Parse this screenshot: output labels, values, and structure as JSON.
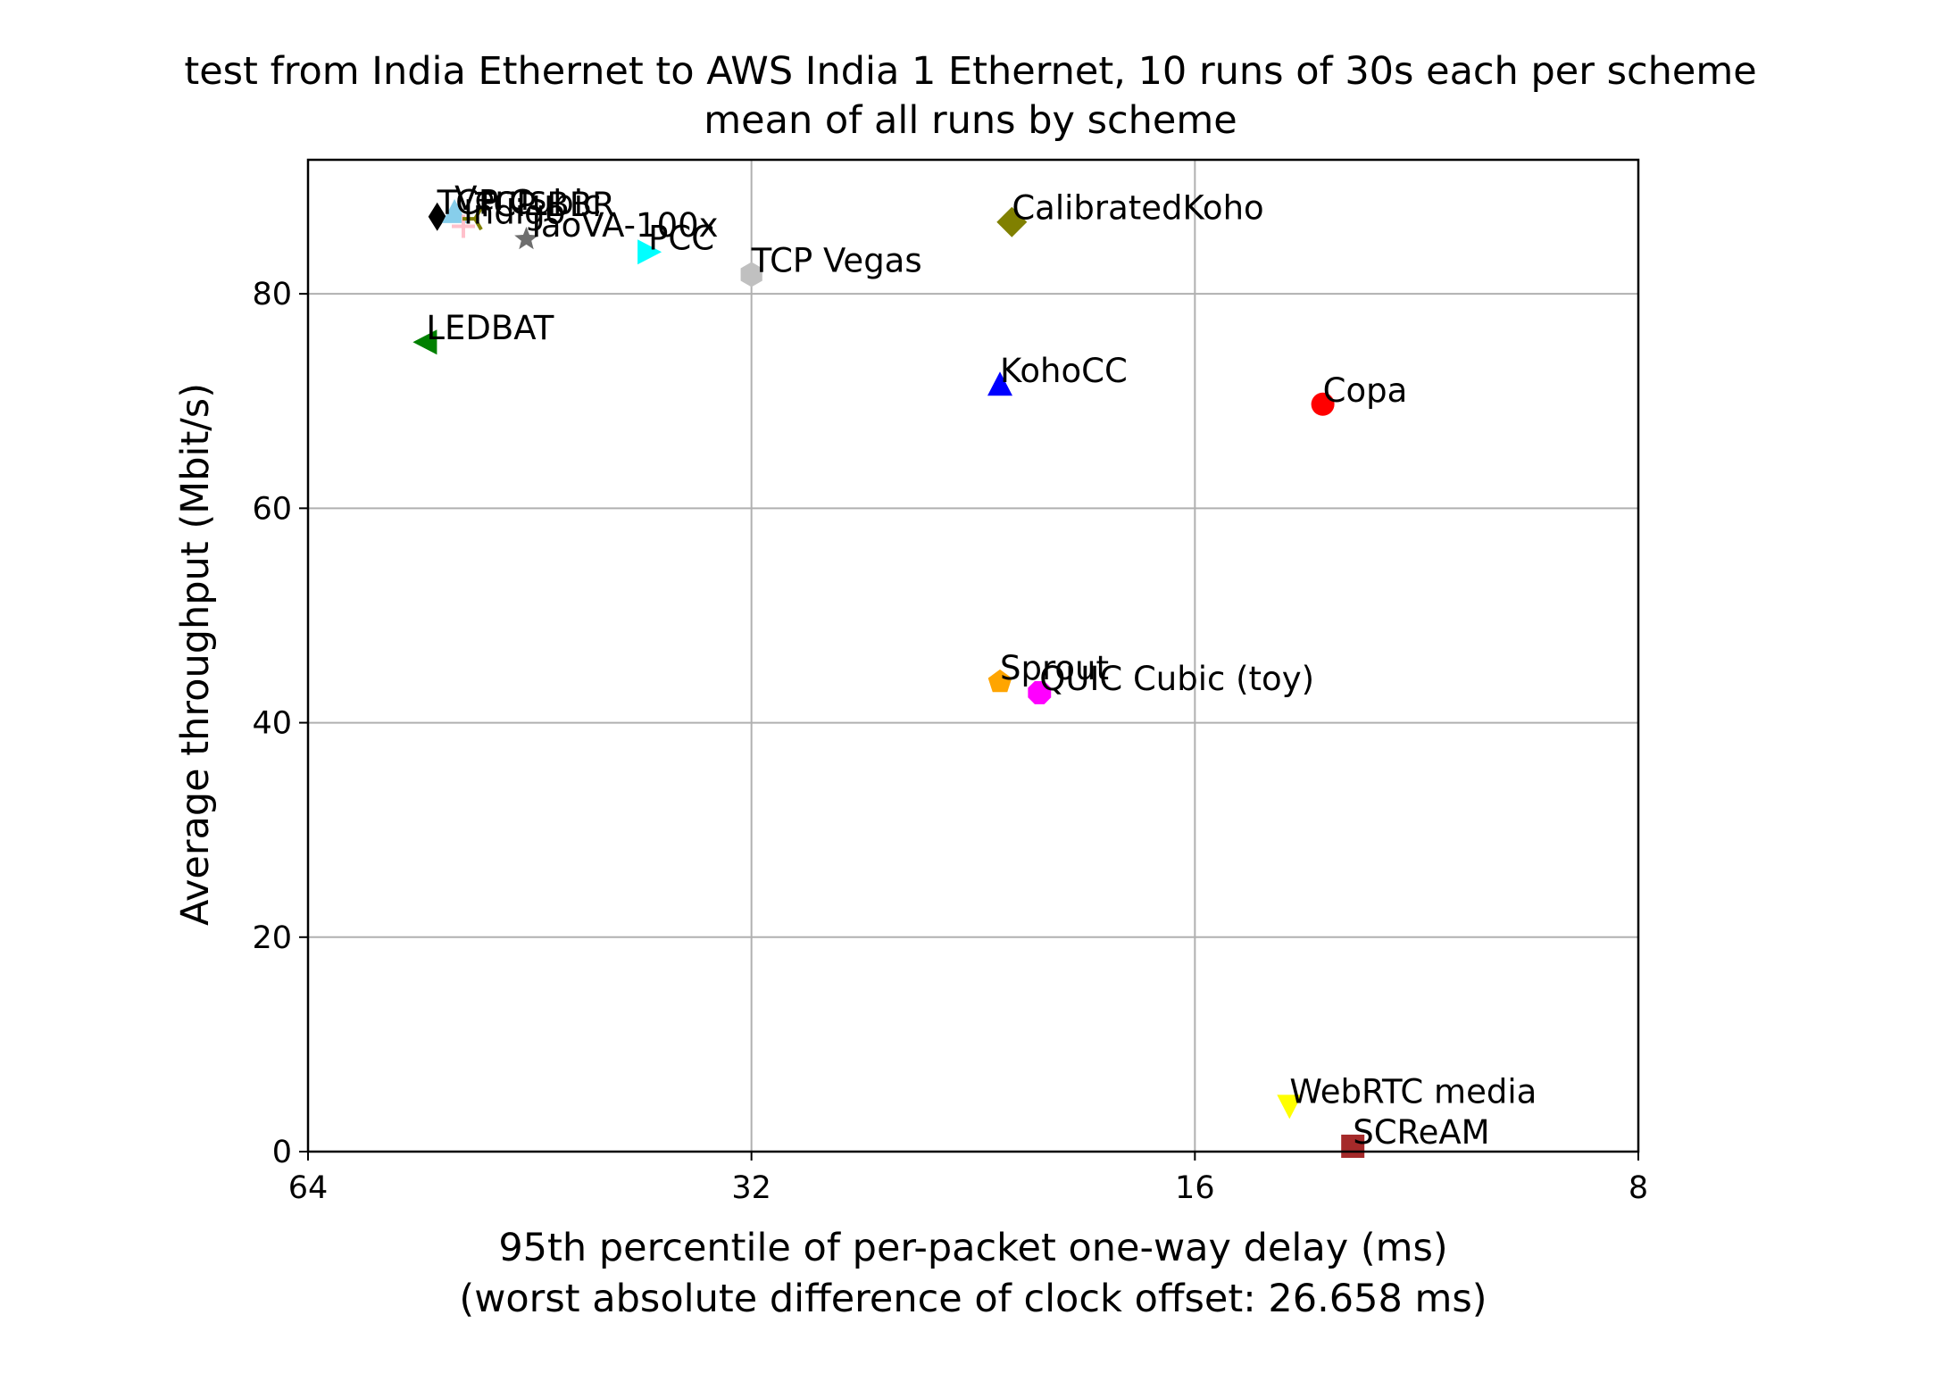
{
  "chart_data": {
    "type": "scatter",
    "title": "test from India Ethernet to AWS India 1 Ethernet, 10 runs of 30s each per scheme",
    "subtitle": "mean of all runs by scheme",
    "xlabel": "95th percentile of per-packet one-way delay (ms)",
    "xlabel2": "(worst absolute difference of clock offset: 26.658 ms)",
    "ylabel": "Average throughput (Mbit/s)",
    "x_scale": "log2",
    "x_inverted": true,
    "xlim": [
      64,
      8
    ],
    "ylim": [
      0,
      92.5
    ],
    "xticks": [
      64,
      32,
      16,
      8
    ],
    "xtick_labels": [
      "64",
      "32",
      "16",
      "8"
    ],
    "yticks": [
      0,
      20,
      40,
      60,
      80
    ],
    "ytick_labels": [
      "0",
      "20",
      "40",
      "60",
      "80"
    ],
    "grid": true,
    "points": [
      {
        "label": "TCP Cubic",
        "x": 52.3,
        "y": 87.2,
        "color": "#000000",
        "marker": "thin-diamond"
      },
      {
        "label": "Verus",
        "x": 50.9,
        "y": 87.6,
        "color": "#87ceeb",
        "marker": "triangle-up"
      },
      {
        "label": "Indigo",
        "x": 50.2,
        "y": 86.3,
        "color": "#ffc0cb",
        "marker": "plus"
      },
      {
        "label": "TCP BBR",
        "x": 49.3,
        "y": 87.0,
        "color": "#808000",
        "marker": "tri-left"
      },
      {
        "label": "TaoVA-100x",
        "x": 45.5,
        "y": 85.1,
        "color": "#6e6e6e",
        "marker": "star"
      },
      {
        "label": "PCC",
        "x": 37.6,
        "y": 83.9,
        "color": "#00ffff",
        "marker": "triangle-right"
      },
      {
        "label": "TCP Vegas",
        "x": 32.0,
        "y": 81.8,
        "color": "#c0c0c0",
        "marker": "hexagon"
      },
      {
        "label": "CalibratedKoho",
        "x": 21.3,
        "y": 86.7,
        "color": "#808000",
        "marker": "diamond"
      },
      {
        "label": "LEDBAT",
        "x": 53.2,
        "y": 75.5,
        "color": "#008000",
        "marker": "triangle-left"
      },
      {
        "label": "KohoCC",
        "x": 21.7,
        "y": 71.5,
        "color": "#0000ff",
        "marker": "triangle-up"
      },
      {
        "label": "Copa",
        "x": 13.1,
        "y": 69.7,
        "color": "#ff0000",
        "marker": "circle"
      },
      {
        "label": "Sprout",
        "x": 21.7,
        "y": 43.8,
        "color": "#ffa500",
        "marker": "pentagon"
      },
      {
        "label": "QUIC Cubic (toy)",
        "x": 20.4,
        "y": 42.8,
        "color": "#ff00ff",
        "marker": "octagon"
      },
      {
        "label": "WebRTC media",
        "x": 13.8,
        "y": 4.3,
        "color": "#ffff00",
        "marker": "triangle-down"
      },
      {
        "label": "SCReAM",
        "x": 12.5,
        "y": 0.5,
        "color": "#a52a2a",
        "marker": "square"
      }
    ]
  }
}
